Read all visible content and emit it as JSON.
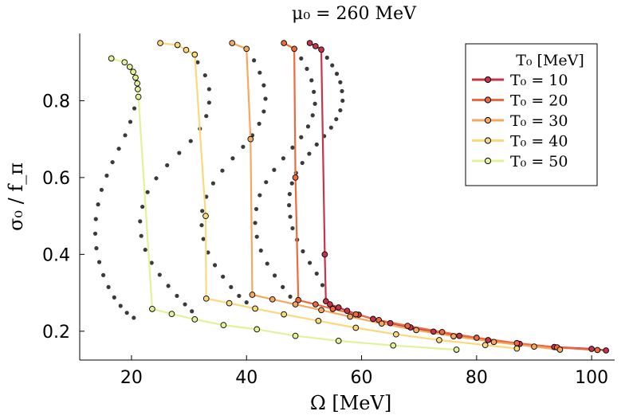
{
  "chart_data": {
    "type": "line",
    "title": "μ₀ = 260 MeV",
    "xlabel": "Ω [MeV]",
    "ylabel": "σ₀ / f_π",
    "xlim": [
      11,
      104
    ],
    "ylim": [
      0.125,
      0.975
    ],
    "x_ticks": [
      20,
      40,
      60,
      80,
      100
    ],
    "y_ticks": [
      0.2,
      0.4,
      0.6,
      0.8
    ],
    "x_tick_labels": [
      "20",
      "40",
      "60",
      "80",
      "100"
    ],
    "y_tick_labels": [
      "0.2",
      "0.4",
      "0.6",
      "0.8"
    ],
    "legend": {
      "title": "T₀ [MeV]",
      "position": "top-right",
      "entries": [
        "T₀ = 10",
        "T₀ = 20",
        "T₀ = 30",
        "T₀ = 40",
        "T₀ = 50"
      ]
    },
    "series": [
      {
        "name": "T₀ = 10",
        "color": "#c7344a",
        "x": [
          51.0,
          52.0,
          53.0,
          53.6,
          53.8,
          54.5,
          56.0,
          57.5,
          59.5,
          62.0,
          65.0,
          68.5,
          72.5,
          77.0,
          82.0,
          87.5,
          93.5,
          100.0,
          102.5
        ],
        "y": [
          0.95,
          0.942,
          0.933,
          0.4,
          0.278,
          0.27,
          0.262,
          0.253,
          0.243,
          0.232,
          0.221,
          0.21,
          0.199,
          0.188,
          0.177,
          0.167,
          0.159,
          0.154,
          0.15
        ]
      },
      {
        "name": "T₀ = 20",
        "color": "#ee6a3e",
        "x": [
          46.5,
          48.3,
          48.5,
          49.0,
          52.0,
          55.0,
          59.0,
          63.0,
          68.0,
          74.0,
          80.0,
          87.0,
          94.0,
          101.0
        ],
        "y": [
          0.95,
          0.935,
          0.6,
          0.281,
          0.27,
          0.258,
          0.244,
          0.229,
          0.214,
          0.198,
          0.183,
          0.169,
          0.158,
          0.151
        ]
      },
      {
        "name": "T₀ = 30",
        "color": "#f6a860",
        "x": [
          37.5,
          40.0,
          40.7,
          41.0,
          44.5,
          48.5,
          53.0,
          58.0,
          63.5,
          69.5,
          76.0,
          83.0,
          90.0,
          94.5
        ],
        "y": [
          0.95,
          0.935,
          0.7,
          0.295,
          0.283,
          0.27,
          0.255,
          0.238,
          0.22,
          0.203,
          0.187,
          0.172,
          0.16,
          0.152
        ]
      },
      {
        "name": "T₀ = 40",
        "color": "#fad97a",
        "x": [
          25.0,
          28.0,
          29.5,
          31.0,
          32.9,
          33.0,
          37.0,
          41.5,
          46.5,
          52.5,
          59.0,
          66.0,
          73.5,
          81.5,
          87.0
        ],
        "y": [
          0.95,
          0.945,
          0.932,
          0.92,
          0.5,
          0.285,
          0.273,
          0.259,
          0.244,
          0.227,
          0.209,
          0.192,
          0.177,
          0.164,
          0.155
        ]
      },
      {
        "name": "T₀ = 50",
        "color": "#e3f29a",
        "x": [
          16.5,
          18.8,
          19.7,
          20.3,
          20.7,
          21.0,
          21.1,
          21.2,
          23.6,
          27.0,
          31.0,
          36.0,
          41.8,
          48.5,
          56.0,
          65.5,
          76.5
        ],
        "y": [
          0.91,
          0.9,
          0.888,
          0.875,
          0.86,
          0.845,
          0.83,
          0.81,
          0.258,
          0.245,
          0.231,
          0.216,
          0.205,
          0.188,
          0.175,
          0.163,
          0.152
        ]
      }
    ],
    "unstable_branches": [
      {
        "name": "T₀ = 10 branch",
        "x": [
          53.1,
          54.0,
          54.9,
          55.7,
          56.3,
          56.6,
          56.7,
          56.3,
          55.6,
          54.7,
          53.5,
          52.2,
          50.9,
          49.7,
          48.6,
          47.9,
          47.5,
          47.4,
          47.6,
          48.0,
          48.8,
          49.8,
          51.0,
          52.2,
          53.2
        ],
        "y": [
          0.93,
          0.912,
          0.892,
          0.87,
          0.848,
          0.825,
          0.8,
          0.775,
          0.752,
          0.73,
          0.708,
          0.686,
          0.662,
          0.638,
          0.612,
          0.585,
          0.557,
          0.528,
          0.498,
          0.468,
          0.438,
          0.408,
          0.378,
          0.35,
          0.32
        ]
      },
      {
        "name": "T₀ = 20 branch",
        "x": [
          48.3,
          49.5,
          50.5,
          51.3,
          51.7,
          51.9,
          51.5,
          50.7,
          49.5,
          48.0,
          46.4,
          44.8,
          43.4,
          42.3,
          41.7,
          41.5,
          41.8,
          42.5,
          43.6,
          44.9,
          46.3,
          47.6
        ],
        "y": [
          0.935,
          0.91,
          0.883,
          0.853,
          0.823,
          0.792,
          0.762,
          0.733,
          0.705,
          0.678,
          0.65,
          0.62,
          0.588,
          0.554,
          0.518,
          0.482,
          0.446,
          0.41,
          0.376,
          0.345,
          0.315,
          0.29
        ]
      },
      {
        "name": "T₀ = 30 branch",
        "x": [
          40.0,
          41.3,
          42.3,
          43.0,
          43.3,
          43.0,
          42.2,
          41.0,
          39.4,
          37.6,
          35.8,
          34.2,
          33.0,
          32.3,
          32.2,
          32.5,
          33.3,
          34.5,
          35.9,
          37.3,
          38.7,
          40.0
        ],
        "y": [
          0.935,
          0.905,
          0.873,
          0.84,
          0.805,
          0.772,
          0.74,
          0.71,
          0.68,
          0.65,
          0.618,
          0.585,
          0.55,
          0.513,
          0.476,
          0.44,
          0.405,
          0.372,
          0.342,
          0.315,
          0.292,
          0.275
        ]
      },
      {
        "name": "T₀ = 40 branch",
        "x": [
          29.5,
          31.5,
          32.8,
          33.5,
          33.5,
          33.0,
          31.9,
          30.3,
          28.3,
          26.2,
          24.3,
          22.8,
          21.9,
          21.5,
          21.7,
          22.4,
          23.5,
          24.9,
          26.4,
          27.9,
          29.3,
          30.5
        ],
        "y": [
          0.932,
          0.9,
          0.866,
          0.83,
          0.795,
          0.76,
          0.727,
          0.695,
          0.664,
          0.632,
          0.598,
          0.562,
          0.524,
          0.486,
          0.448,
          0.412,
          0.378,
          0.347,
          0.318,
          0.292,
          0.27,
          0.252
        ]
      },
      {
        "name": "T₀ = 50 branch",
        "x": [
          20.5,
          19.8,
          18.9,
          17.8,
          16.7,
          15.7,
          14.8,
          14.2,
          13.8,
          13.7,
          13.9,
          14.4,
          15.1,
          16.0,
          17.0,
          18.1,
          19.2,
          20.4
        ],
        "y": [
          0.78,
          0.745,
          0.71,
          0.675,
          0.64,
          0.605,
          0.568,
          0.53,
          0.492,
          0.454,
          0.416,
          0.38,
          0.346,
          0.315,
          0.288,
          0.266,
          0.248,
          0.235
        ]
      }
    ]
  }
}
